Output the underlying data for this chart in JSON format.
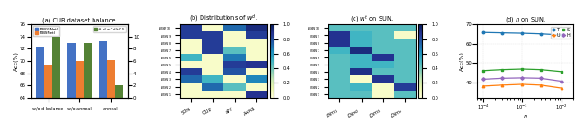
{
  "panel_a": {
    "categories": [
      "w/o d-balance",
      "w/o anneal",
      "anneal"
    ],
    "blue_bars": [
      72.3,
      72.9,
      73.3
    ],
    "orange_bars": [
      69.3,
      70.0,
      70.1
    ],
    "green_bars": [
      10.0,
      9.0,
      2.0
    ],
    "ylim_left": [
      64,
      76
    ],
    "ylim_right": [
      0,
      12
    ],
    "yticks_right": [
      0,
      2,
      4,
      6,
      8,
      10
    ],
    "ylabel_left": "Acc(%)",
    "legend_blue": "T(BGSNet)",
    "legend_orange": "T(BSNet)",
    "legend_green": "# of w^d≥0.5",
    "title": "(a) CUB dataset balance."
  },
  "panel_b": {
    "rows": [
      "BSN_{10}",
      "BSN_9",
      "BSN_8",
      "BSN_7",
      "BSN_6",
      "BSN_5",
      "BSN_4",
      "BSN_3",
      "BSN_2",
      "BSN_1"
    ],
    "rows_display": [
      "$BSN_{10}$",
      "$BSN_9$",
      "$BSN_8$",
      "$BSN_7$",
      "$BSN_6$",
      "$BSN_5$",
      "$BSN_4$",
      "$BSN_3$",
      "$BSN_2$",
      "$BSN_1$"
    ],
    "cols": [
      "SUN",
      "CUB",
      "aPY",
      "AwA2"
    ],
    "data": [
      [
        0.85,
        0.05,
        0.72,
        0.92
      ],
      [
        0.85,
        0.85,
        0.05,
        0.85
      ],
      [
        0.05,
        0.85,
        0.05,
        0.05
      ],
      [
        0.05,
        0.85,
        0.45,
        0.05
      ],
      [
        0.5,
        0.05,
        0.68,
        0.05
      ],
      [
        0.05,
        0.05,
        0.85,
        0.88
      ],
      [
        0.85,
        0.05,
        0.78,
        0.05
      ],
      [
        0.72,
        0.5,
        0.05,
        0.65
      ],
      [
        0.05,
        0.72,
        0.45,
        0.05
      ],
      [
        0.05,
        0.05,
        0.05,
        0.88
      ]
    ],
    "title": "(b) Distributions of $w^d$.",
    "cmap": "YlGnBu"
  },
  "panel_c": {
    "rows_display": [
      "$BSN_{10}$",
      "$BSN_9$",
      "$BSN_8$",
      "$BSN_7$",
      "$BSN_6$",
      "$BSN_5$",
      "$BSN_4$",
      "$BSN_3$",
      "$BSN_2$",
      "$BSN_1$"
    ],
    "cols": [
      "$Dim_1$",
      "$Dim_2$",
      "$Dim_3$",
      "$Dim_4$"
    ],
    "data": [
      [
        0.45,
        0.45,
        0.45,
        0.45
      ],
      [
        0.88,
        0.5,
        0.45,
        0.05
      ],
      [
        0.88,
        0.5,
        0.45,
        0.45
      ],
      [
        0.5,
        0.92,
        0.45,
        0.45
      ],
      [
        0.45,
        0.5,
        0.88,
        0.45
      ],
      [
        0.45,
        0.5,
        0.5,
        0.45
      ],
      [
        0.45,
        0.9,
        0.45,
        0.45
      ],
      [
        0.45,
        0.05,
        0.88,
        0.45
      ],
      [
        0.45,
        0.5,
        0.05,
        0.85
      ],
      [
        0.45,
        0.45,
        0.05,
        0.45
      ]
    ],
    "title": "(c) $w^t$ on SUN.",
    "cmap": "YlGnBu"
  },
  "panel_d": {
    "eta_vals": [
      0.0001,
      0.0003,
      0.001,
      0.003,
      0.01
    ],
    "T": [
      65.8,
      65.6,
      65.4,
      65.1,
      64.5
    ],
    "U": [
      38.0,
      38.5,
      38.9,
      38.5,
      37.0
    ],
    "S": [
      46.0,
      46.5,
      46.8,
      46.5,
      45.5
    ],
    "H": [
      41.5,
      42.0,
      42.2,
      42.0,
      40.5
    ],
    "colors": {
      "T": "#1f77b4",
      "U": "#ff7f0e",
      "S": "#2ca02c",
      "H": "#9467bd"
    },
    "markers": {
      "T": "o",
      "U": "^",
      "S": "s",
      "H": "D"
    },
    "ylabel": "Acc(%)",
    "xlabel": "$\\eta$",
    "title": "(d) $\\eta$ on SUN.",
    "ylim": [
      32,
      70
    ],
    "yticks": [
      36,
      40,
      44,
      48,
      52,
      56,
      60,
      64,
      68
    ]
  }
}
